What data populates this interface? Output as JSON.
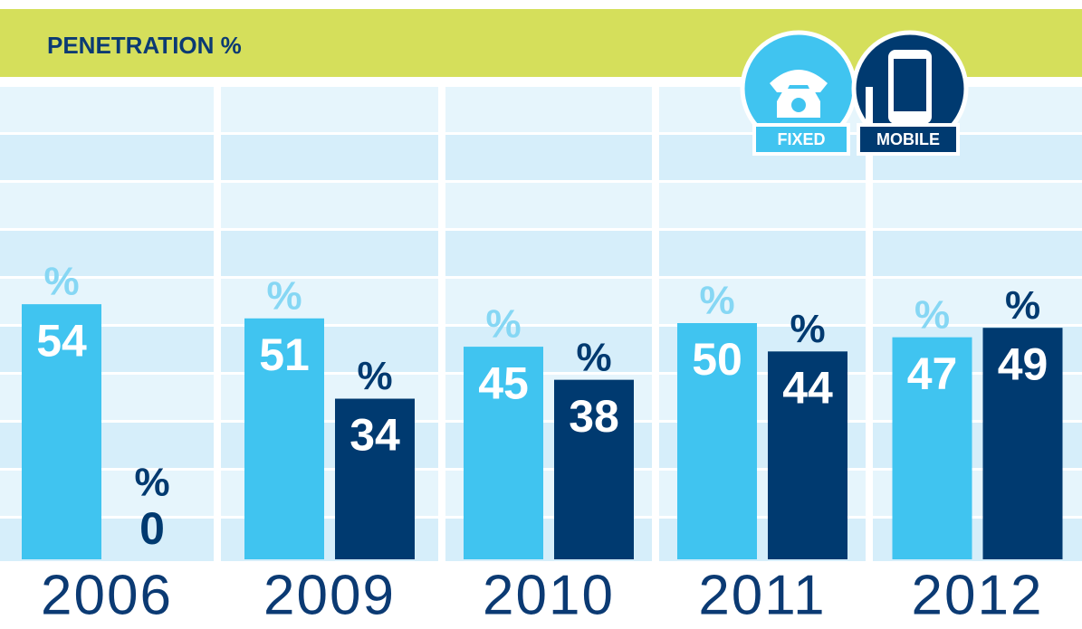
{
  "chart_data": {
    "type": "bar",
    "title": "PENETRATION %",
    "categories": [
      "2006",
      "2009",
      "2010",
      "2011",
      "2012"
    ],
    "series": [
      {
        "name": "FIXED",
        "color": "#40c4f0",
        "values": [
          54,
          51,
          45,
          50,
          47
        ]
      },
      {
        "name": "MOBILE",
        "color": "#003a70",
        "values": [
          0,
          34,
          38,
          44,
          49
        ]
      }
    ],
    "value_unit": "%",
    "ylim": [
      0,
      100
    ]
  }
}
